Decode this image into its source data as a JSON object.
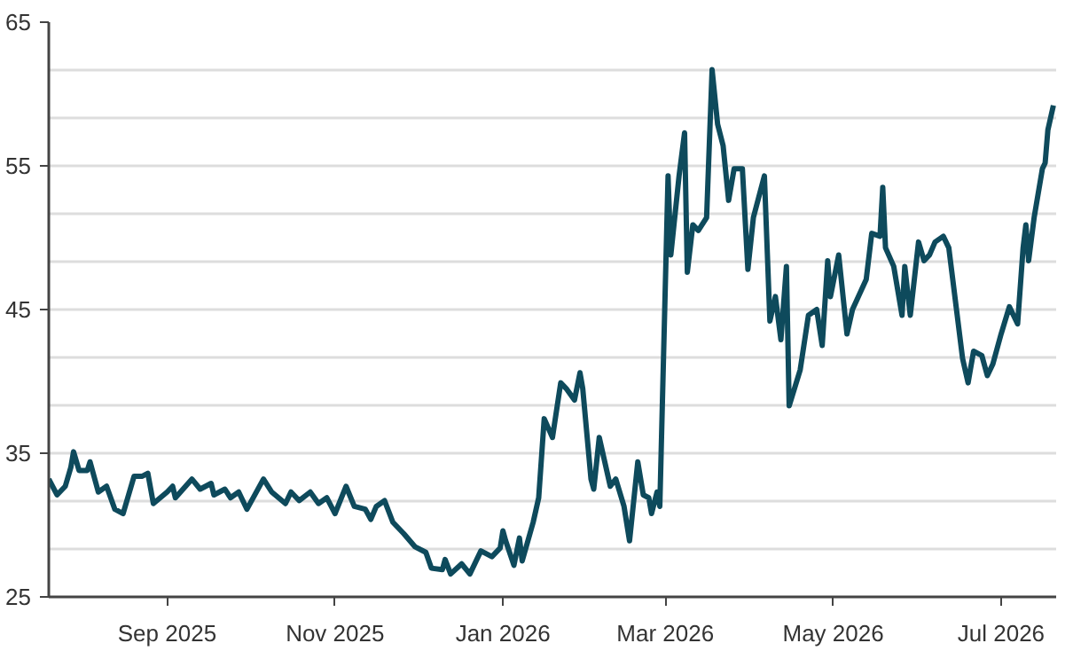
{
  "chart_data": {
    "type": "line",
    "x": [
      "2025-07-20",
      "2025-07-23",
      "2025-07-26",
      "2025-07-28",
      "2025-07-29",
      "2025-07-31",
      "2025-08-03",
      "2025-08-04",
      "2025-08-07",
      "2025-08-10",
      "2025-08-13",
      "2025-08-16",
      "2025-08-20",
      "2025-08-23",
      "2025-08-25",
      "2025-08-27",
      "2025-09-01",
      "2025-09-03",
      "2025-09-04",
      "2025-09-10",
      "2025-09-13",
      "2025-09-17",
      "2025-09-18",
      "2025-09-22",
      "2025-09-24",
      "2025-09-27",
      "2025-09-30",
      "2025-10-06",
      "2025-10-09",
      "2025-10-14",
      "2025-10-16",
      "2025-10-19",
      "2025-10-23",
      "2025-10-26",
      "2025-10-29",
      "2025-11-01",
      "2025-11-05",
      "2025-11-08",
      "2025-11-12",
      "2025-11-14",
      "2025-11-16",
      "2025-11-19",
      "2025-11-22",
      "2025-11-26",
      "2025-11-30",
      "2025-12-04",
      "2025-12-06",
      "2025-12-10",
      "2025-12-11",
      "2025-12-13",
      "2025-12-17",
      "2025-12-20",
      "2025-12-24",
      "2025-12-28",
      "2025-12-31",
      "2026-01-01",
      "2026-01-02",
      "2026-01-05",
      "2026-01-07",
      "2026-01-08",
      "2026-01-12",
      "2026-01-14",
      "2026-01-16",
      "2026-01-19",
      "2026-01-22",
      "2026-01-24",
      "2026-01-27",
      "2026-01-29",
      "2026-01-30",
      "2026-02-02",
      "2026-02-03",
      "2026-02-05",
      "2026-02-09",
      "2026-02-11",
      "2026-02-14",
      "2026-02-16",
      "2026-02-19",
      "2026-02-21",
      "2026-02-23",
      "2026-02-24",
      "2026-02-26",
      "2026-02-27",
      "2026-03-02",
      "2026-03-03",
      "2026-03-06",
      "2026-03-08",
      "2026-03-09",
      "2026-03-11",
      "2026-03-13",
      "2026-03-16",
      "2026-03-18",
      "2026-03-20",
      "2026-03-22",
      "2026-03-24",
      "2026-03-26",
      "2026-03-29",
      "2026-03-31",
      "2026-04-02",
      "2026-04-06",
      "2026-04-08",
      "2026-04-10",
      "2026-04-12",
      "2026-04-14",
      "2026-04-15",
      "2026-04-19",
      "2026-04-22",
      "2026-04-25",
      "2026-04-27",
      "2026-04-29",
      "2026-04-30",
      "2026-05-03",
      "2026-05-06",
      "2026-05-08",
      "2026-05-13",
      "2026-05-15",
      "2026-05-18",
      "2026-05-19",
      "2026-05-20",
      "2026-05-23",
      "2026-05-26",
      "2026-05-27",
      "2026-05-29",
      "2026-06-01",
      "2026-06-03",
      "2026-06-05",
      "2026-06-07",
      "2026-06-10",
      "2026-06-12",
      "2026-06-17",
      "2026-06-19",
      "2026-06-21",
      "2026-06-24",
      "2026-06-26",
      "2026-06-28",
      "2026-07-01",
      "2026-07-04",
      "2026-07-07",
      "2026-07-09",
      "2026-07-10",
      "2026-07-11",
      "2026-07-13",
      "2026-07-16",
      "2026-07-17",
      "2026-07-18",
      "2026-07-20"
    ],
    "series": [
      {
        "color": "#0e4a5c",
        "values": [
          33.2,
          32.1,
          32.7,
          34.0,
          35.1,
          33.8,
          33.8,
          34.4,
          32.3,
          32.7,
          31.1,
          30.8,
          33.4,
          33.4,
          33.6,
          31.5,
          32.3,
          32.7,
          31.9,
          33.2,
          32.5,
          32.9,
          32.1,
          32.5,
          31.9,
          32.3,
          31.1,
          33.2,
          32.3,
          31.5,
          32.3,
          31.7,
          32.3,
          31.5,
          31.9,
          30.8,
          32.7,
          31.3,
          31.1,
          30.4,
          31.3,
          31.7,
          30.2,
          29.4,
          28.5,
          28.1,
          27.0,
          26.9,
          27.6,
          26.6,
          27.3,
          26.6,
          28.2,
          27.8,
          28.4,
          29.6,
          28.9,
          27.2,
          29.1,
          27.5,
          30.2,
          31.9,
          37.4,
          36.1,
          39.9,
          39.5,
          38.7,
          40.6,
          39.5,
          33.2,
          32.5,
          36.1,
          32.7,
          33.2,
          31.3,
          28.9,
          34.4,
          32.1,
          31.9,
          30.8,
          32.3,
          31.3,
          54.3,
          48.8,
          54.3,
          57.3,
          47.6,
          50.9,
          50.5,
          51.4,
          61.7,
          57.9,
          56.4,
          52.6,
          54.8,
          54.8,
          47.8,
          51.4,
          54.3,
          44.2,
          45.9,
          42.9,
          48.0,
          38.3,
          40.8,
          44.6,
          45.0,
          42.5,
          48.4,
          45.9,
          48.8,
          43.3,
          45.0,
          47.1,
          50.3,
          50.1,
          53.5,
          49.3,
          48.0,
          44.6,
          48.0,
          44.6,
          49.7,
          48.4,
          48.8,
          49.7,
          50.1,
          49.3,
          41.6,
          39.9,
          42.1,
          41.8,
          40.4,
          41.2,
          43.3,
          45.2,
          44.0,
          49.3,
          50.9,
          48.4,
          51.4,
          54.8,
          55.2,
          57.5,
          59.2
        ]
      }
    ],
    "xlim": [
      "2025-07-20",
      "2026-07-21"
    ],
    "xticks": [
      {
        "value": "2025-09-01",
        "label": "Sep 2025"
      },
      {
        "value": "2025-11-01",
        "label": "Nov 2025"
      },
      {
        "value": "2026-01-01",
        "label": "Jan 2026"
      },
      {
        "value": "2026-03-01",
        "label": "Mar 2026"
      },
      {
        "value": "2026-05-01",
        "label": "May 2026"
      },
      {
        "value": "2026-07-01",
        "label": "Jul 2026"
      }
    ],
    "ylim": [
      25,
      65
    ],
    "yticks": [
      25,
      {
        "value": 28.33,
        "label": null
      },
      {
        "value": 31.67,
        "label": null
      },
      35,
      {
        "value": 38.33,
        "label": null
      },
      {
        "value": 41.67,
        "label": null
      },
      45,
      {
        "value": 48.33,
        "label": null
      },
      {
        "value": 51.67,
        "label": null
      },
      55,
      {
        "value": 58.33,
        "label": null
      },
      {
        "value": 61.67,
        "label": null
      },
      65
    ],
    "grid": "y",
    "line_style": "solid"
  }
}
